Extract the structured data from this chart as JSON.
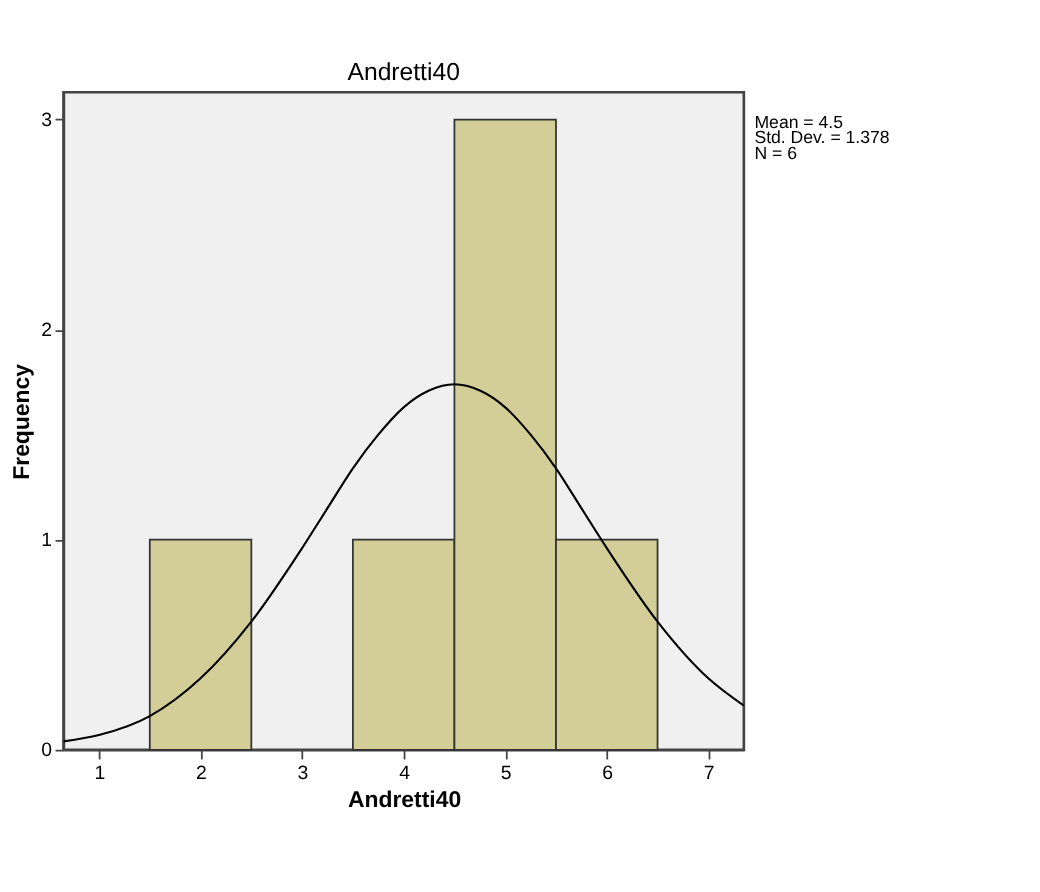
{
  "chart_data": {
    "type": "histogram",
    "title": "Andretti40",
    "xlabel": "Andretti40",
    "ylabel": "Frequency",
    "bins": [
      1.5,
      2.5,
      3.5,
      4.5,
      5.5,
      6.5
    ],
    "values": [
      1,
      0,
      1,
      3,
      1
    ],
    "color": "#d3ce97",
    "series": [
      {
        "type": "line",
        "color": "#000000",
        "x": [
          0.65,
          1,
          1.5,
          2,
          2.5,
          3,
          3.25,
          3.5,
          3.75,
          4,
          4.25,
          4.5,
          4.75,
          5,
          5.25,
          5.5,
          5.75,
          6,
          6.5,
          7,
          7.35
        ],
        "values": [
          0.04,
          0.07,
          0.16,
          0.34,
          0.61,
          0.96,
          1.15,
          1.34,
          1.5,
          1.63,
          1.71,
          1.74,
          1.71,
          1.63,
          1.5,
          1.34,
          1.15,
          0.96,
          0.61,
          0.34,
          0.21
        ]
      }
    ],
    "xlim": [
      0.65,
      7.35
    ],
    "ylim": [
      0,
      3.13
    ],
    "xticks": [
      1,
      2,
      3,
      4,
      5,
      6,
      7
    ],
    "yticks": [
      0,
      1,
      2,
      3
    ],
    "grid": false,
    "annotations": [
      "Mean = 4.5",
      "Std. Dev. = 1.378",
      "N = 6"
    ]
  }
}
